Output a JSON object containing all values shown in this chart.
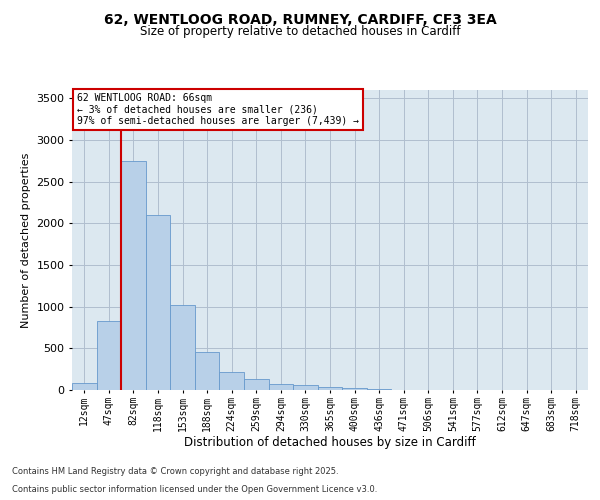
{
  "title_line1": "62, WENTLOOG ROAD, RUMNEY, CARDIFF, CF3 3EA",
  "title_line2": "Size of property relative to detached houses in Cardiff",
  "xlabel": "Distribution of detached houses by size in Cardiff",
  "ylabel": "Number of detached properties",
  "annotation_line1": "62 WENTLOOG ROAD: 66sqm",
  "annotation_line2": "← 3% of detached houses are smaller (236)",
  "annotation_line3": "97% of semi-detached houses are larger (7,439) →",
  "footer_line1": "Contains HM Land Registry data © Crown copyright and database right 2025.",
  "footer_line2": "Contains public sector information licensed under the Open Government Licence v3.0.",
  "bin_labels": [
    "12sqm",
    "47sqm",
    "82sqm",
    "118sqm",
    "153sqm",
    "188sqm",
    "224sqm",
    "259sqm",
    "294sqm",
    "330sqm",
    "365sqm",
    "400sqm",
    "436sqm",
    "471sqm",
    "506sqm",
    "541sqm",
    "577sqm",
    "612sqm",
    "647sqm",
    "683sqm",
    "718sqm"
  ],
  "bar_values": [
    80,
    830,
    2750,
    2100,
    1020,
    460,
    220,
    130,
    75,
    55,
    35,
    20,
    10,
    5,
    3,
    2,
    1,
    1,
    0,
    0,
    0
  ],
  "bar_color": "#b8d0e8",
  "bar_edge_color": "#6699cc",
  "vline_color": "#cc0000",
  "annotation_box_color": "#cc0000",
  "background_color": "#ffffff",
  "plot_bg_color": "#dce8f0",
  "grid_color": "#b0bece",
  "ylim": [
    0,
    3600
  ],
  "yticks": [
    0,
    500,
    1000,
    1500,
    2000,
    2500,
    3000,
    3500
  ]
}
